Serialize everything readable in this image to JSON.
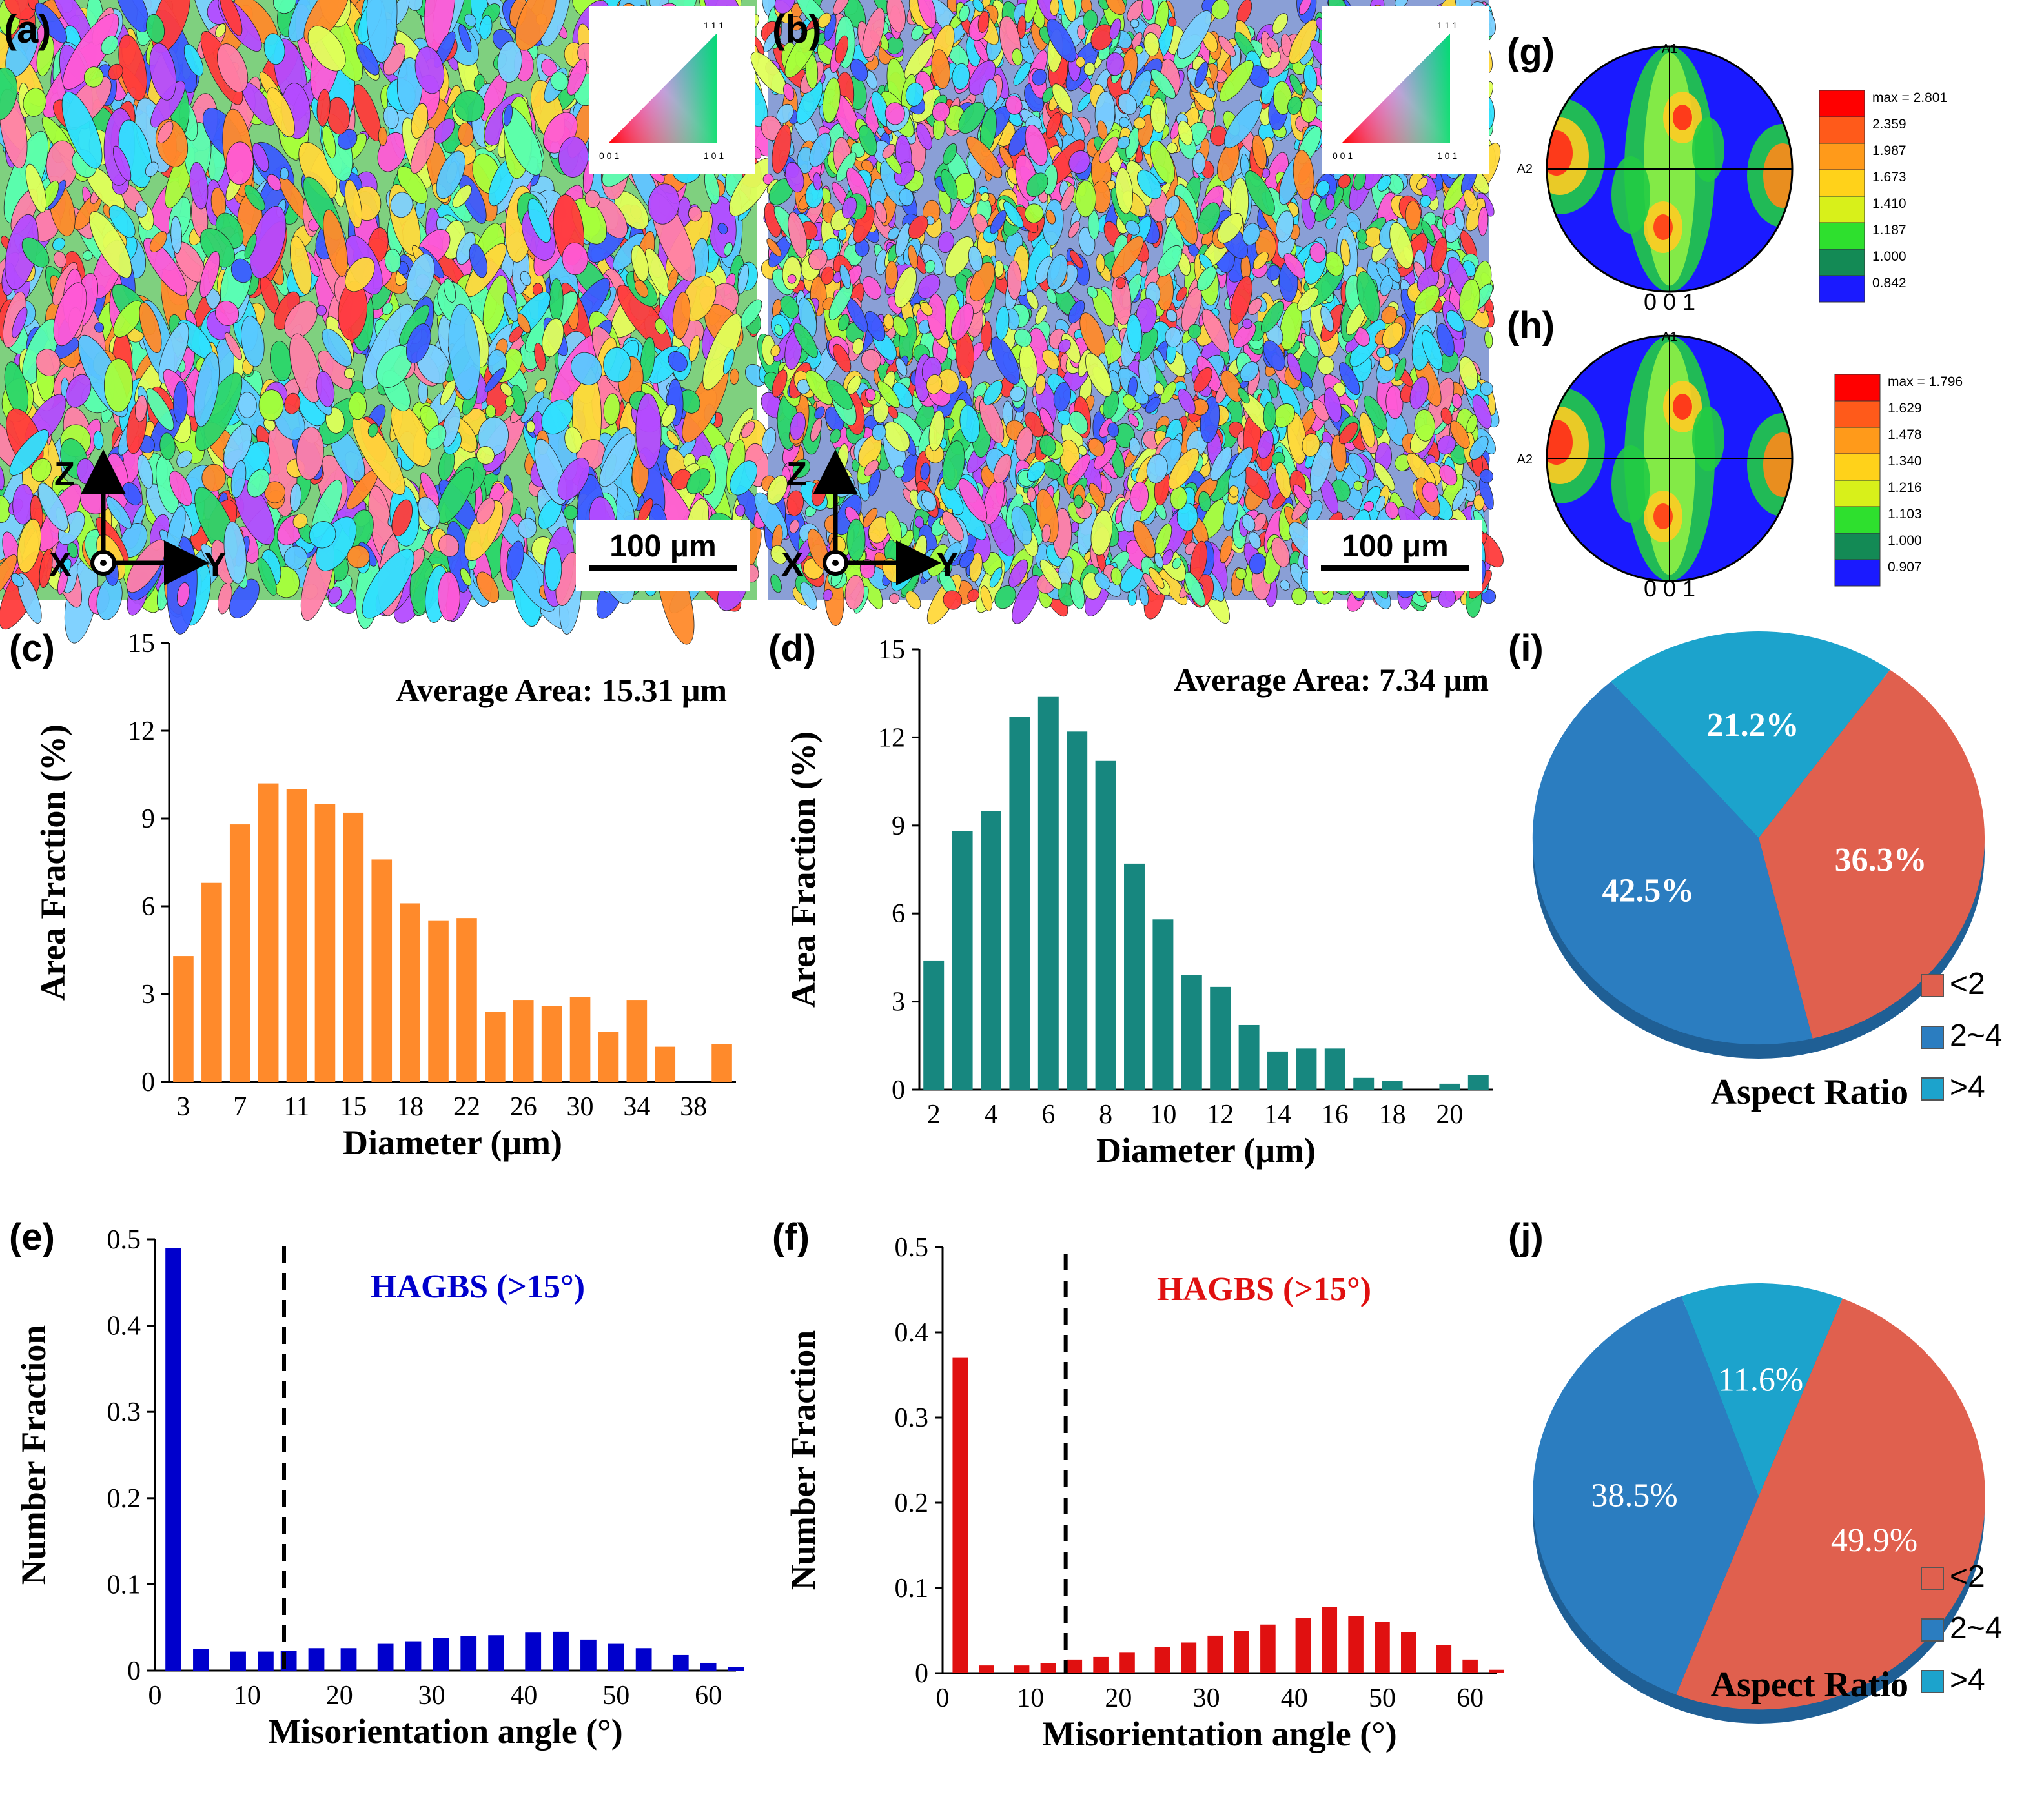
{
  "panels": {
    "a": {
      "label": "(a)",
      "scalebar": "100 μm",
      "axis_z": "Z",
      "axis_x": "X",
      "axis_y": "Y",
      "ipf_111": "1 1 1",
      "ipf_001": "0 0 1",
      "ipf_101": "1 0 1"
    },
    "b": {
      "label": "(b)",
      "scalebar": "100 μm",
      "axis_z": "Z",
      "axis_x": "X",
      "axis_y": "Y",
      "ipf_111": "1 1 1",
      "ipf_001": "0 0 1",
      "ipf_101": "1 0 1"
    },
    "c": {
      "label": "(c)"
    },
    "d": {
      "label": "(d)"
    },
    "e": {
      "label": "(e)"
    },
    "f": {
      "label": "(f)"
    },
    "g": {
      "label": "(g)",
      "top": "A1",
      "left": "A2",
      "bottom": "0 0 1",
      "legend": [
        "max = 2.801",
        "2.359",
        "1.987",
        "1.673",
        "1.410",
        "1.187",
        "1.000",
        "0.842"
      ]
    },
    "h": {
      "label": "(h)",
      "top": "A1",
      "left": "A2",
      "bottom": "0 0 1",
      "legend": [
        "max = 1.796",
        "1.629",
        "1.478",
        "1.340",
        "1.216",
        "1.103",
        "1.000",
        "0.907"
      ]
    },
    "i": {
      "label": "(i)"
    },
    "j": {
      "label": "(j)"
    }
  },
  "colors": {
    "orange": "#FF8A2B",
    "teal": "#17877F",
    "blue": "#0000CC",
    "red": "#E01010",
    "pie_red": "#E0604E",
    "pie_blue": "#2B7DC0",
    "pie_cyan": "#1CA3CC"
  },
  "chart_data": [
    {
      "id": "c",
      "type": "bar",
      "annotation": "Average Area: 15.31 μm",
      "xlabel": "Diameter (μm)",
      "ylabel": "Area Fraction (%)",
      "ylim": [
        0,
        15
      ],
      "yticks": [
        "0",
        "3",
        "6",
        "9",
        "12",
        "15"
      ],
      "xtick_labels": [
        "3",
        "7",
        "11",
        "15",
        "18",
        "22",
        "26",
        "30",
        "34",
        "38"
      ],
      "values": [
        4.3,
        6.8,
        8.8,
        10.2,
        10.0,
        9.5,
        9.2,
        7.6,
        6.1,
        5.5,
        5.6,
        2.4,
        2.8,
        2.6,
        2.9,
        1.7,
        2.8,
        1.2,
        0,
        1.3
      ]
    },
    {
      "id": "d",
      "type": "bar",
      "annotation": "Average Area: 7.34 μm",
      "xlabel": "Diameter (μm)",
      "ylabel": "Area Fraction (%)",
      "ylim": [
        0,
        15
      ],
      "yticks": [
        "0",
        "3",
        "6",
        "9",
        "12",
        "15"
      ],
      "xtick_labels": [
        "2",
        "4",
        "6",
        "8",
        "10",
        "12",
        "14",
        "16",
        "18",
        "20"
      ],
      "values": [
        4.4,
        8.8,
        9.5,
        12.7,
        13.4,
        12.2,
        11.2,
        7.7,
        5.8,
        3.9,
        3.5,
        2.2,
        1.3,
        1.4,
        1.4,
        0.4,
        0.3,
        0,
        0.2,
        0.5
      ]
    },
    {
      "id": "e",
      "type": "bar",
      "annotation": "HAGBS (>15°)",
      "xlabel": "Misorientation angle (°)",
      "ylabel": "Number Fraction",
      "ylim": [
        0,
        0.5
      ],
      "yticks": [
        "0",
        "0.1",
        "0.2",
        "0.3",
        "0.4",
        "0.5"
      ],
      "xlim": [
        0,
        63
      ],
      "xticks": [
        "0",
        "10",
        "20",
        "30",
        "40",
        "50",
        "60"
      ],
      "threshold": 14,
      "angles": [
        2,
        5,
        9,
        12,
        14.5,
        17.5,
        21,
        25,
        28,
        31,
        34,
        37,
        41,
        44,
        47,
        50,
        53,
        57,
        60,
        63
      ],
      "values": [
        0.49,
        0.025,
        0.022,
        0.022,
        0.023,
        0.026,
        0.026,
        0.031,
        0.034,
        0.038,
        0.04,
        0.041,
        0.044,
        0.045,
        0.036,
        0.031,
        0.026,
        0.018,
        0.009,
        0.004
      ]
    },
    {
      "id": "f",
      "type": "bar",
      "annotation": "HAGBS (>15°)",
      "xlabel": "Misorientation angle (°)",
      "ylabel": "Number Fraction",
      "ylim": [
        0,
        0.5
      ],
      "yticks": [
        "0",
        "0.1",
        "0.2",
        "0.3",
        "0.4",
        "0.5"
      ],
      "xlim": [
        0,
        63
      ],
      "xticks": [
        "0",
        "10",
        "20",
        "30",
        "40",
        "50",
        "60"
      ],
      "threshold": 14,
      "angles": [
        2,
        5,
        9,
        12,
        15,
        18,
        21,
        25,
        28,
        31,
        34,
        37,
        41,
        44,
        47,
        50,
        53,
        57,
        60,
        63
      ],
      "values": [
        0.37,
        0.009,
        0.009,
        0.012,
        0.016,
        0.019,
        0.024,
        0.031,
        0.036,
        0.044,
        0.05,
        0.057,
        0.065,
        0.078,
        0.067,
        0.06,
        0.048,
        0.033,
        0.016,
        0.004
      ]
    },
    {
      "id": "i",
      "type": "pie",
      "title": "Aspect Ratio",
      "slices": [
        {
          "label": "<2",
          "value": 36.3,
          "text": "36.3%"
        },
        {
          "label": "2~4",
          "value": 42.5,
          "text": "42.5%"
        },
        {
          "label": ">4",
          "value": 21.2,
          "text": "21.2%"
        }
      ]
    },
    {
      "id": "j",
      "type": "pie",
      "title": "Aspect Ratio",
      "slices": [
        {
          "label": "<2",
          "value": 49.9,
          "text": "49.9%"
        },
        {
          "label": "2~4",
          "value": 38.5,
          "text": "38.5%"
        },
        {
          "label": ">4",
          "value": 11.6,
          "text": "11.6%"
        }
      ]
    }
  ]
}
